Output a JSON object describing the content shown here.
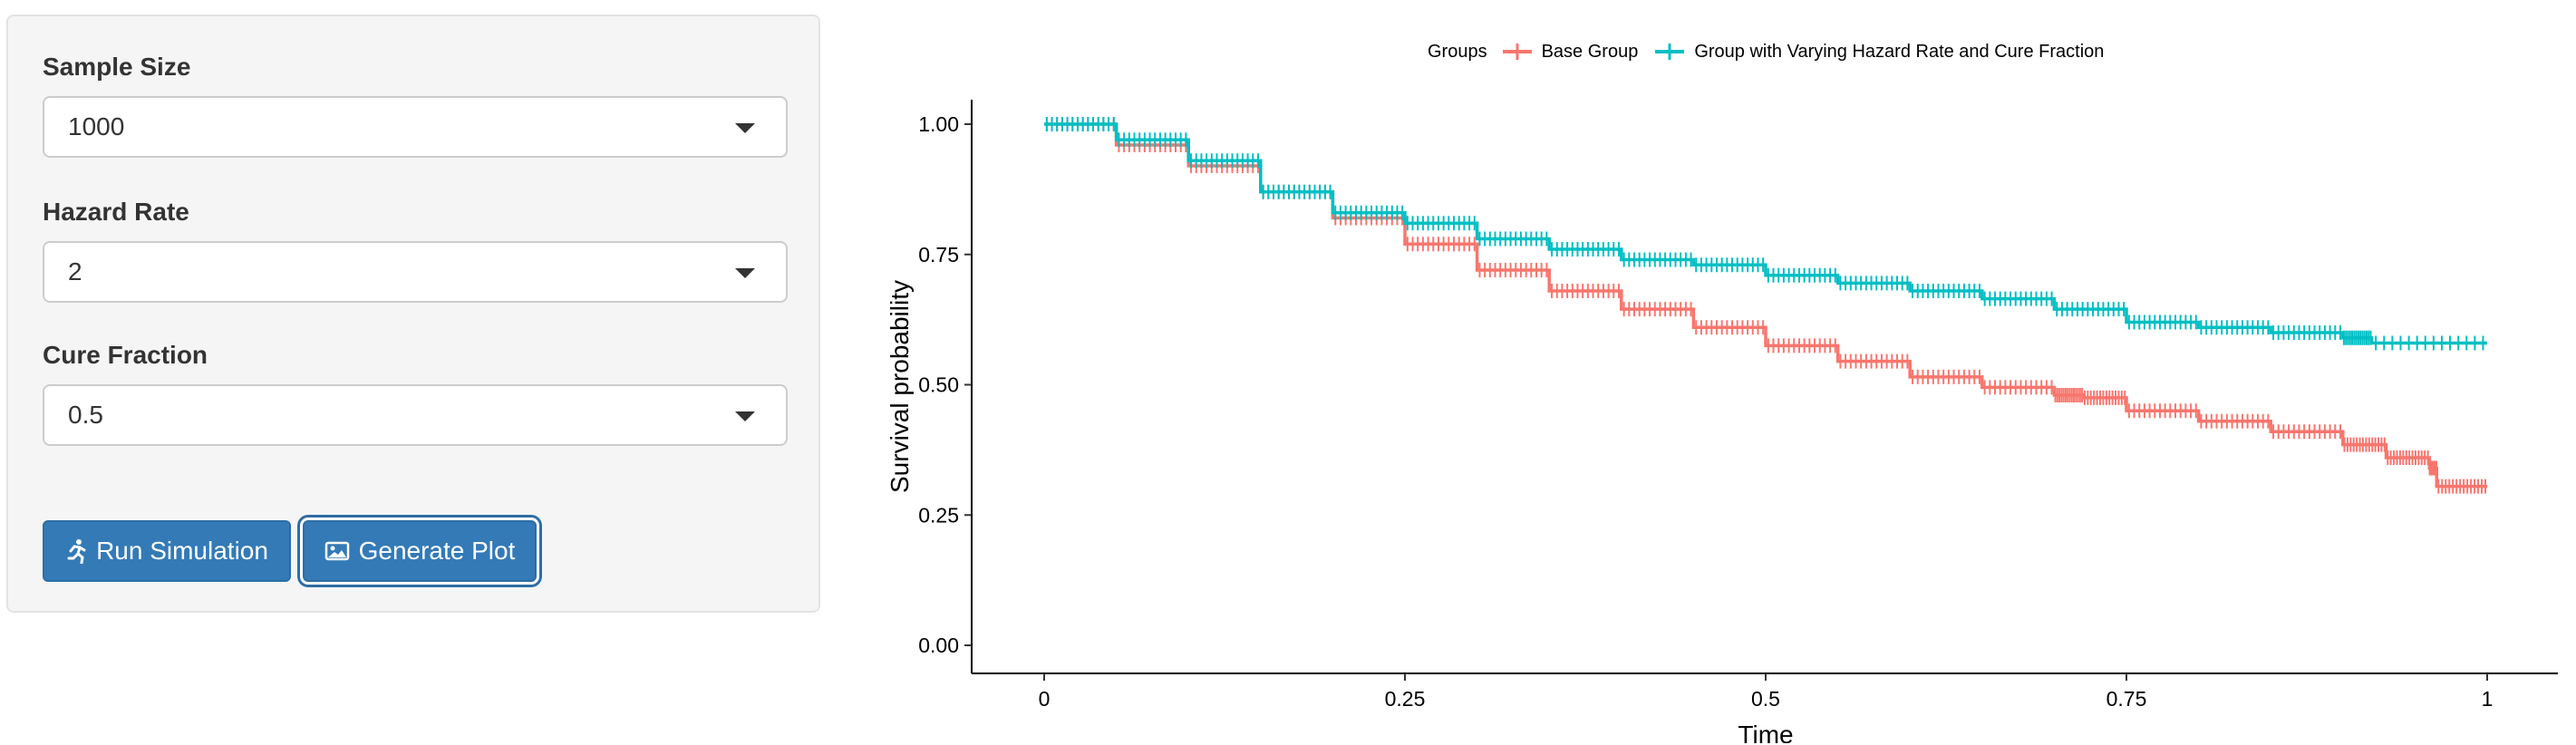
{
  "sidebar": {
    "sample_size": {
      "label": "Sample Size",
      "value": "1000"
    },
    "hazard_rate": {
      "label": "Hazard Rate",
      "value": "2"
    },
    "cure_fraction": {
      "label": "Cure Fraction",
      "value": "0.5"
    },
    "run_button": {
      "label": "Run Simulation",
      "icon": "running-person-icon"
    },
    "plot_button": {
      "label": "Generate Plot",
      "icon": "image-icon"
    }
  },
  "legend": {
    "title": "Groups",
    "items": [
      {
        "label": "Base Group",
        "color": "#F8766D"
      },
      {
        "label": "Group with Varying Hazard Rate and Cure Fraction",
        "color": "#00BFC4"
      }
    ]
  },
  "chart_data": {
    "type": "line",
    "step": true,
    "xlabel": "Time",
    "ylabel": "Survival probability",
    "xlim": [
      0,
      1
    ],
    "ylim": [
      0,
      1
    ],
    "x_ticks": [
      "0",
      "0.25",
      "0.5",
      "0.75",
      "1"
    ],
    "y_ticks": [
      "0.00",
      "0.25",
      "0.50",
      "0.75",
      "1.00"
    ],
    "grid": false,
    "legend_position": "top",
    "series": [
      {
        "name": "Base Group",
        "color": "#F8766D",
        "x": [
          0,
          0.05,
          0.1,
          0.15,
          0.2,
          0.25,
          0.3,
          0.35,
          0.4,
          0.45,
          0.5,
          0.55,
          0.6,
          0.65,
          0.7,
          0.72,
          0.75,
          0.8,
          0.85,
          0.9,
          0.93,
          0.96,
          0.965,
          1.0
        ],
        "y": [
          1.0,
          0.96,
          0.92,
          0.87,
          0.82,
          0.77,
          0.72,
          0.68,
          0.645,
          0.61,
          0.575,
          0.545,
          0.515,
          0.495,
          0.48,
          0.475,
          0.45,
          0.43,
          0.41,
          0.385,
          0.36,
          0.34,
          0.305,
          0.305
        ]
      },
      {
        "name": "Group with Varying Hazard Rate and Cure Fraction",
        "color": "#00BFC4",
        "x": [
          0,
          0.05,
          0.1,
          0.15,
          0.2,
          0.25,
          0.3,
          0.35,
          0.4,
          0.45,
          0.5,
          0.55,
          0.6,
          0.65,
          0.7,
          0.75,
          0.8,
          0.85,
          0.9,
          0.92,
          1.0
        ],
        "y": [
          1.0,
          0.97,
          0.93,
          0.87,
          0.83,
          0.81,
          0.78,
          0.76,
          0.74,
          0.73,
          0.71,
          0.695,
          0.68,
          0.665,
          0.645,
          0.62,
          0.61,
          0.6,
          0.59,
          0.58,
          0.58
        ]
      }
    ]
  }
}
